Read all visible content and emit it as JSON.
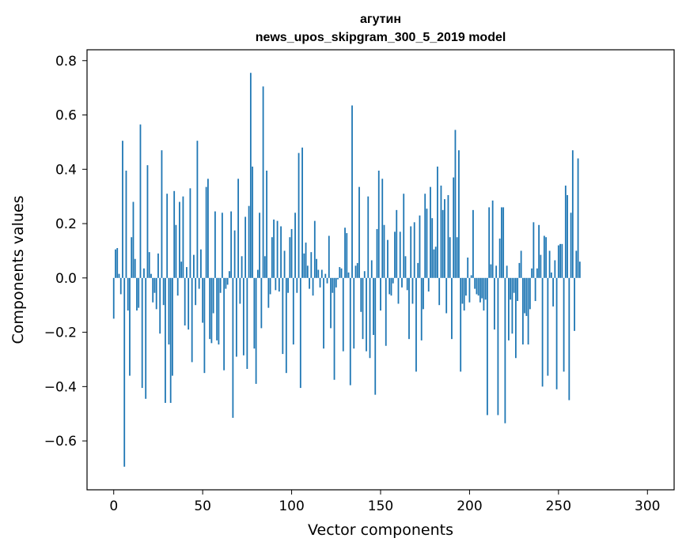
{
  "chart_data": {
    "type": "bar",
    "title": "агутин",
    "subtitle": "news_upos_skipgram_300_5_2019 model",
    "xlabel": "Vector components",
    "ylabel": "Components values",
    "xlim": [
      -15,
      315
    ],
    "ylim": [
      -0.78,
      0.84
    ],
    "xticks": [
      0,
      50,
      100,
      150,
      200,
      250,
      300
    ],
    "xtick_labels": [
      "0",
      "50",
      "100",
      "150",
      "200",
      "250",
      "300"
    ],
    "yticks": [
      -0.6,
      -0.4,
      -0.2,
      0.0,
      0.2,
      0.4,
      0.6,
      0.8
    ],
    "ytick_labels": [
      "−0.6",
      "−0.4",
      "−0.2",
      "0.0",
      "0.2",
      "0.4",
      "0.6",
      "0.8"
    ],
    "grid": false,
    "bar_color": "#1f77b4",
    "values": [
      -0.15,
      0.105,
      0.11,
      0.015,
      -0.06,
      0.505,
      -0.695,
      0.395,
      -0.12,
      -0.36,
      0.15,
      0.28,
      0.07,
      -0.12,
      -0.11,
      0.565,
      -0.405,
      0.035,
      -0.445,
      0.415,
      0.095,
      0.015,
      -0.09,
      -0.055,
      -0.115,
      0.09,
      -0.205,
      0.47,
      -0.1,
      -0.46,
      0.31,
      -0.245,
      -0.46,
      -0.36,
      0.32,
      0.195,
      -0.065,
      0.28,
      0.06,
      0.3,
      -0.175,
      0.04,
      -0.19,
      0.33,
      -0.31,
      0.085,
      -0.1,
      0.505,
      -0.04,
      0.105,
      -0.165,
      -0.35,
      0.335,
      0.365,
      -0.225,
      -0.24,
      -0.13,
      0.245,
      -0.23,
      -0.245,
      -0.055,
      0.24,
      -0.34,
      -0.04,
      -0.025,
      0.025,
      0.245,
      -0.515,
      0.175,
      -0.29,
      0.365,
      -0.095,
      0.08,
      -0.285,
      0.225,
      -0.335,
      0.265,
      0.755,
      0.41,
      -0.26,
      -0.39,
      0.03,
      0.24,
      -0.185,
      0.705,
      0.08,
      0.395,
      -0.11,
      -0.06,
      0.15,
      0.215,
      -0.045,
      0.21,
      -0.05,
      0.19,
      -0.28,
      0.1,
      -0.35,
      -0.055,
      0.15,
      0.18,
      -0.245,
      0.24,
      -0.055,
      0.46,
      -0.405,
      0.48,
      0.09,
      0.13,
      0.045,
      -0.04,
      0.095,
      -0.065,
      0.21,
      0.07,
      0.03,
      -0.035,
      0.03,
      -0.26,
      0.015,
      -0.02,
      0.155,
      -0.185,
      -0.055,
      -0.375,
      -0.035,
      -0.005,
      0.04,
      0.035,
      -0.27,
      0.185,
      0.165,
      0.02,
      -0.395,
      0.635,
      -0.26,
      0.045,
      0.055,
      0.335,
      -0.125,
      -0.225,
      0.025,
      -0.27,
      0.3,
      -0.295,
      0.065,
      -0.21,
      -0.43,
      0.18,
      0.395,
      -0.12,
      0.365,
      0.195,
      -0.25,
      0.14,
      -0.06,
      -0.065,
      -0.02,
      0.17,
      0.25,
      -0.095,
      0.17,
      -0.035,
      0.31,
      0.08,
      -0.045,
      -0.225,
      0.19,
      -0.095,
      0.205,
      -0.345,
      0.055,
      0.23,
      -0.23,
      -0.115,
      0.31,
      0.255,
      -0.05,
      0.335,
      0.22,
      0.105,
      0.115,
      0.41,
      -0.1,
      0.34,
      0.25,
      0.29,
      -0.13,
      0.305,
      0.15,
      -0.225,
      0.37,
      0.545,
      0.15,
      0.47,
      -0.345,
      -0.095,
      -0.12,
      -0.065,
      0.075,
      -0.09,
      0.01,
      0.25,
      -0.04,
      -0.06,
      -0.065,
      -0.09,
      -0.075,
      -0.12,
      -0.08,
      -0.505,
      0.26,
      0.05,
      0.285,
      -0.19,
      0.045,
      -0.505,
      0.145,
      0.26,
      0.26,
      -0.535,
      0.045,
      -0.23,
      -0.08,
      -0.205,
      -0.055,
      -0.295,
      -0.085,
      0.055,
      0.1,
      -0.245,
      -0.13,
      -0.14,
      -0.245,
      -0.115,
      0.035,
      0.205,
      -0.085,
      0.035,
      0.195,
      0.085,
      -0.4,
      0.155,
      0.15,
      -0.36,
      0.1,
      0.02,
      -0.105,
      0.065,
      -0.41,
      0.12,
      0.125,
      0.125,
      -0.345,
      0.34,
      0.305,
      -0.45,
      0.24,
      0.47,
      -0.195,
      0.1,
      0.44,
      0.06
    ]
  }
}
